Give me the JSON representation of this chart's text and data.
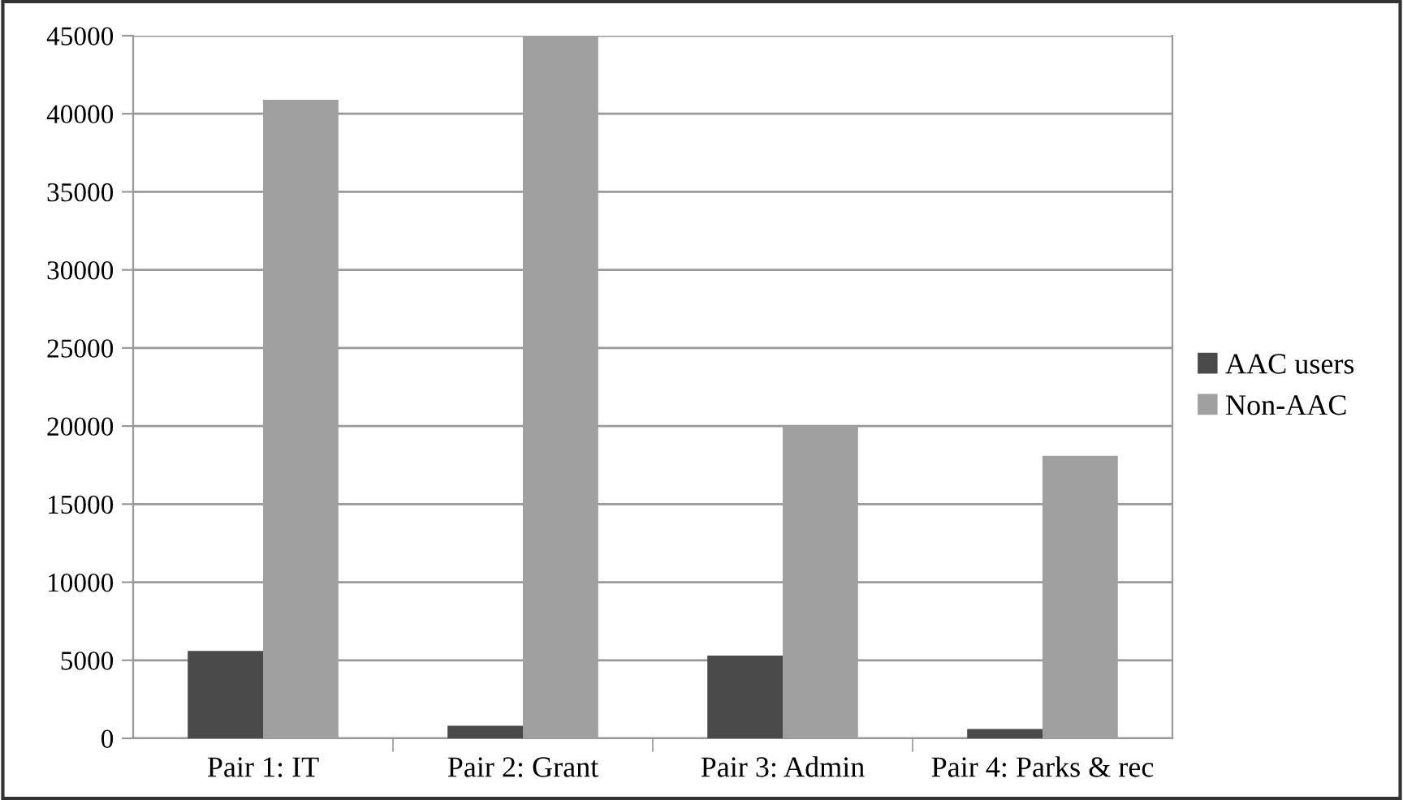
{
  "chart_data": {
    "type": "bar",
    "categories": [
      "Pair 1: IT",
      "Pair 2: Grant",
      "Pair 3: Admin",
      "Pair 4: Parks & rec"
    ],
    "series": [
      {
        "name": "AAC users",
        "color": "#4a4a4a",
        "values": [
          5600,
          800,
          5300,
          600
        ]
      },
      {
        "name": "Non-AAC",
        "color": "#a0a0a0",
        "values": [
          40900,
          45000,
          20000,
          18100
        ]
      }
    ],
    "ylim": [
      0,
      45000
    ],
    "yticks": [
      0,
      5000,
      10000,
      15000,
      20000,
      25000,
      30000,
      35000,
      40000,
      45000
    ],
    "grid": "y",
    "legend": "right"
  }
}
